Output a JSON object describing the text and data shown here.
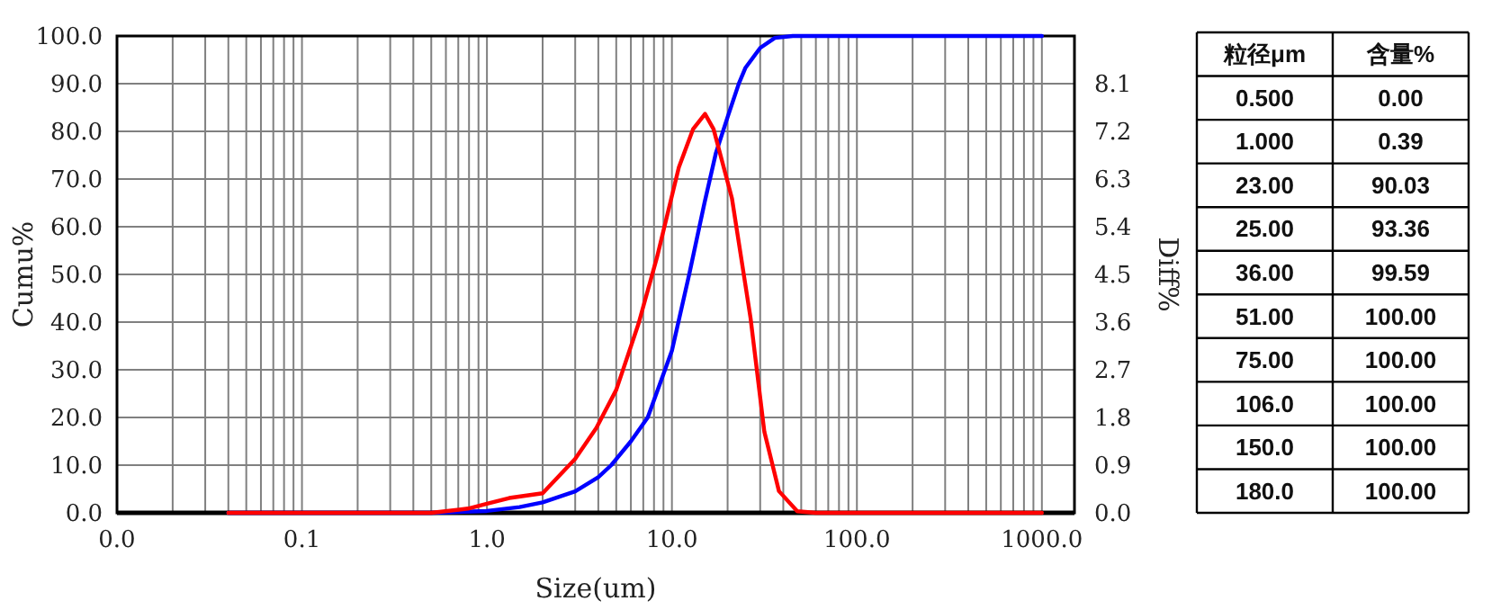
{
  "chart_data": [
    {
      "type": "line",
      "xlabel": "Size(um)",
      "ylabel": "Cumu%",
      "y2label": "Diff%",
      "log": "x",
      "grid": true,
      "xlim": [
        0.01,
        1500
      ],
      "xticks": [
        {
          "value": 0.01,
          "label": "0.0"
        },
        {
          "value": 0.02,
          "label": null
        },
        {
          "value": 0.03,
          "label": null
        },
        {
          "value": 0.04,
          "label": null
        },
        {
          "value": 0.05,
          "label": null
        },
        {
          "value": 0.06,
          "label": null
        },
        {
          "value": 0.07,
          "label": null
        },
        {
          "value": 0.08,
          "label": null
        },
        {
          "value": 0.09,
          "label": null
        },
        {
          "value": 0.1,
          "label": "0.1"
        },
        {
          "value": 0.2,
          "label": null
        },
        {
          "value": 0.3,
          "label": null
        },
        {
          "value": 0.4,
          "label": null
        },
        {
          "value": 0.5,
          "label": null
        },
        {
          "value": 0.6,
          "label": null
        },
        {
          "value": 0.7,
          "label": null
        },
        {
          "value": 0.8,
          "label": null
        },
        {
          "value": 0.9,
          "label": null
        },
        {
          "value": 1,
          "label": "1.0"
        },
        {
          "value": 2,
          "label": null
        },
        {
          "value": 3,
          "label": null
        },
        {
          "value": 4,
          "label": null
        },
        {
          "value": 5,
          "label": null
        },
        {
          "value": 6,
          "label": null
        },
        {
          "value": 7,
          "label": null
        },
        {
          "value": 8,
          "label": null
        },
        {
          "value": 9,
          "label": null
        },
        {
          "value": 10,
          "label": "10.0"
        },
        {
          "value": 20,
          "label": null
        },
        {
          "value": 30,
          "label": null
        },
        {
          "value": 40,
          "label": null
        },
        {
          "value": 50,
          "label": null
        },
        {
          "value": 60,
          "label": null
        },
        {
          "value": 70,
          "label": null
        },
        {
          "value": 80,
          "label": null
        },
        {
          "value": 90,
          "label": null
        },
        {
          "value": 100,
          "label": "100.0"
        },
        {
          "value": 200,
          "label": null
        },
        {
          "value": 300,
          "label": null
        },
        {
          "value": 400,
          "label": null
        },
        {
          "value": 500,
          "label": null
        },
        {
          "value": 600,
          "label": null
        },
        {
          "value": 700,
          "label": null
        },
        {
          "value": 800,
          "label": null
        },
        {
          "value": 900,
          "label": null
        },
        {
          "value": 1000,
          "label": "1000.0"
        }
      ],
      "ylim": [
        0,
        100
      ],
      "yticks": [
        {
          "value": 0,
          "label": "0.0"
        },
        {
          "value": 10,
          "label": "10.0"
        },
        {
          "value": 20,
          "label": "20.0"
        },
        {
          "value": 30,
          "label": "30.0"
        },
        {
          "value": 40,
          "label": "40.0"
        },
        {
          "value": 50,
          "label": "50.0"
        },
        {
          "value": 60,
          "label": "60.0"
        },
        {
          "value": 70,
          "label": "70.0"
        },
        {
          "value": 80,
          "label": "80.0"
        },
        {
          "value": 90,
          "label": "90.0"
        },
        {
          "value": 100,
          "label": "100.0"
        }
      ],
      "y2lim": [
        0,
        9
      ],
      "y2ticks": [
        {
          "value": 0,
          "label": "0.0"
        },
        0.9,
        1.8,
        2.7,
        3.6,
        4.5,
        5.4,
        6.3,
        7.2,
        8.1
      ],
      "series": [
        {
          "color": "#0000ff",
          "x": [
            0.04,
            0.5,
            1,
            1.5,
            2,
            3,
            4,
            4.7,
            6,
            7.4,
            10,
            12.4,
            15,
            17.3,
            20,
            23,
            25,
            30,
            36,
            45,
            51,
            1000
          ],
          "values": [
            0,
            0,
            0.39,
            1.2,
            2.2,
            4.5,
            7.5,
            10,
            15,
            20,
            34,
            50,
            65,
            75.5,
            83,
            90.03,
            93.36,
            97.5,
            99.59,
            100,
            100,
            100
          ]
        },
        {
          "color": "#ff0000",
          "axis": "y2",
          "x": [
            0.04,
            0.5,
            0.79,
            1,
            1.32,
            2,
            3,
            3.9,
            5,
            6.6,
            8.3,
            10.9,
            13,
            15.1,
            16.8,
            21.1,
            26.6,
            31.6,
            37.9,
            47.6,
            60,
            1000
          ],
          "values": [
            0,
            0,
            0.08,
            0.17,
            0.28,
            0.37,
            1.02,
            1.6,
            2.32,
            3.57,
            4.82,
            6.52,
            7.24,
            7.53,
            7.24,
            5.94,
            3.68,
            1.53,
            0.41,
            0.03,
            0,
            0
          ]
        }
      ]
    },
    {
      "type": "other",
      "annotations": [
        "粒径μm",
        "含量%",
        "0.500",
        "0.00",
        "1.000",
        "0.39",
        "23.00",
        "90.03",
        "25.00",
        "93.36",
        "36.00",
        "99.59",
        "51.00",
        "100.00",
        "75.00",
        "100.00",
        "106.0",
        "100.00",
        "150.0",
        "100.00",
        "180.0",
        "100.00"
      ]
    }
  ]
}
